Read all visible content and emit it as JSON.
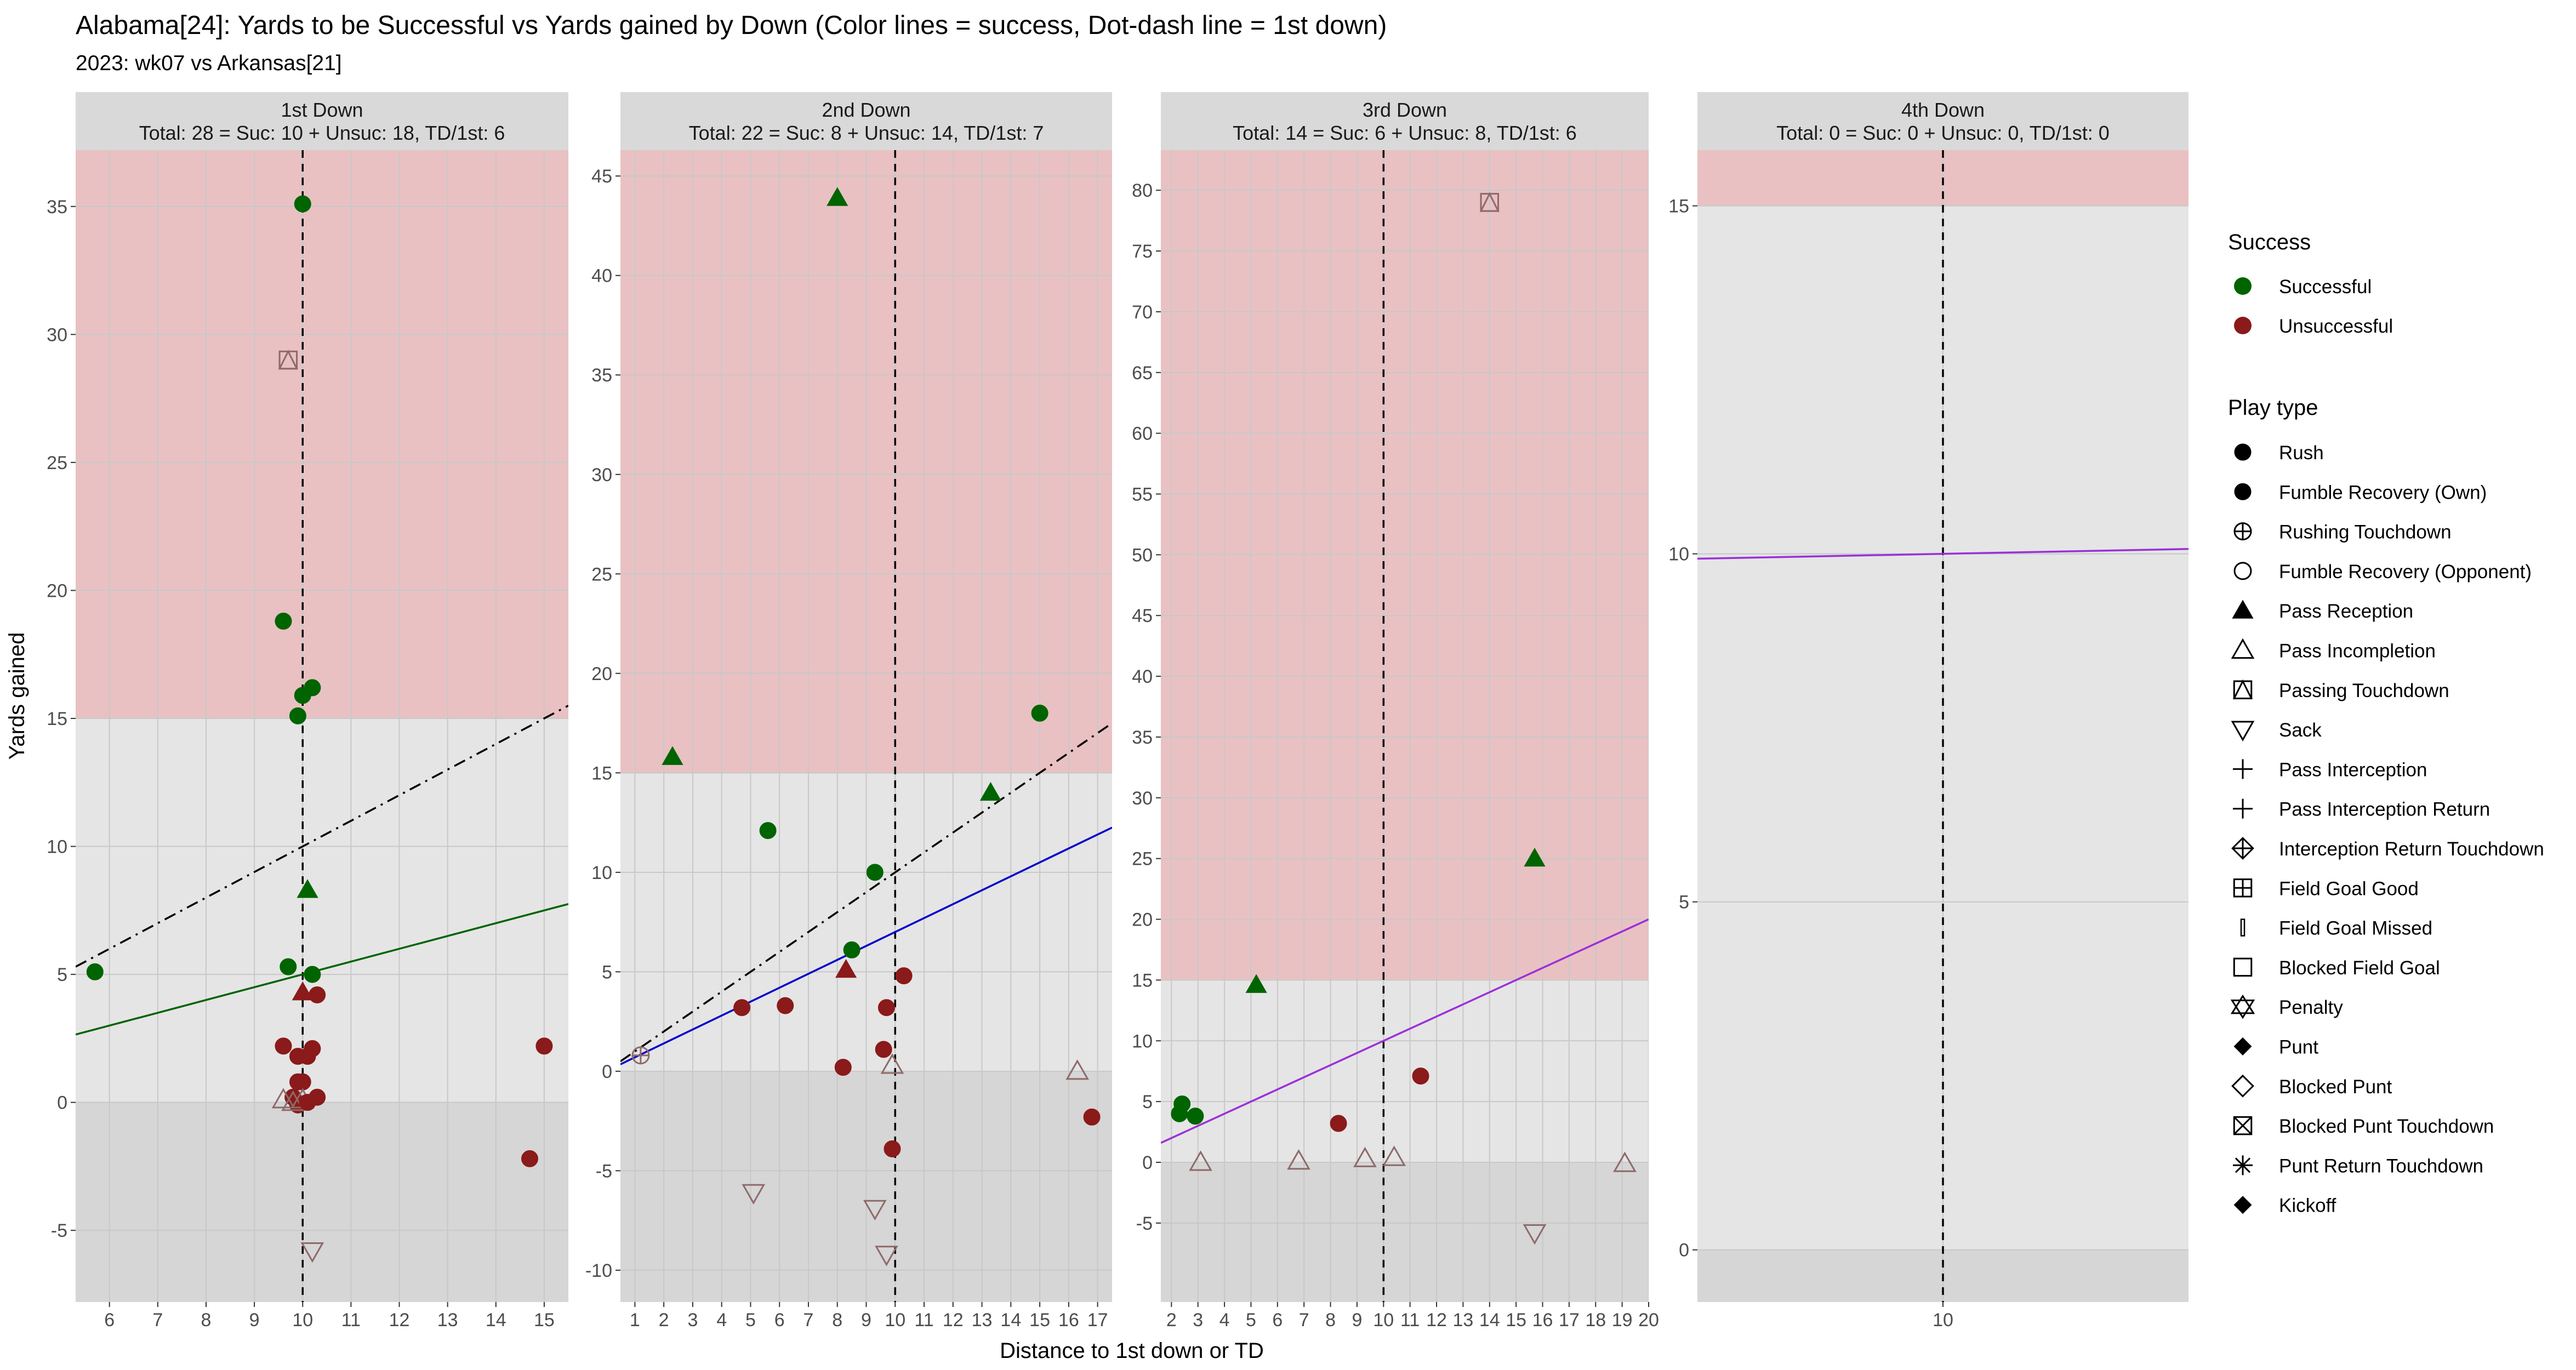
{
  "figure": {
    "title": "Alabama[24]: Yards to be Successful vs Yards gained by Down  (Color lines = success, Dot-dash line = 1st down)",
    "subtitle": "2023: wk07 vs Arkansas[21]",
    "xlabel": "Distance to 1st down or TD",
    "ylabel": "Yards gained"
  },
  "colors": {
    "successful": "#006400",
    "unsuccessful": "#8B1A1A",
    "outline": "#8E6A6A",
    "red_band": "#E9C1C3",
    "plain_band": "#E5E5E5",
    "negative_band": "#D6D6D6",
    "strip": "#D9D9D9",
    "grid": "#C8C8C8"
  },
  "legend": {
    "success_title": "Success",
    "success_items": [
      {
        "label": "Successful",
        "color": "#006400"
      },
      {
        "label": "Unsuccessful",
        "color": "#8B1A1A"
      }
    ],
    "playtype_title": "Play type",
    "playtype_items": [
      {
        "label": "Rush",
        "shape": "circle"
      },
      {
        "label": "Fumble Recovery (Own)",
        "shape": "circle"
      },
      {
        "label": "Rushing Touchdown",
        "shape": "circle-plus"
      },
      {
        "label": "Fumble Recovery (Opponent)",
        "shape": "circle-open"
      },
      {
        "label": "Pass Reception",
        "shape": "triangle"
      },
      {
        "label": "Pass Incompletion",
        "shape": "triangle-open"
      },
      {
        "label": "Passing Touchdown",
        "shape": "square-triangle"
      },
      {
        "label": "Sack",
        "shape": "triangle-down-open"
      },
      {
        "label": "Pass Interception",
        "shape": "plus"
      },
      {
        "label": "Pass Interception Return",
        "shape": "plus"
      },
      {
        "label": "Interception Return Touchdown",
        "shape": "diamond-plus"
      },
      {
        "label": "Field Goal Good",
        "shape": "square-plus"
      },
      {
        "label": "Field Goal Missed",
        "shape": "thin-rect"
      },
      {
        "label": "Blocked Field Goal",
        "shape": "square-open"
      },
      {
        "label": "Penalty",
        "shape": "star-david"
      },
      {
        "label": "Punt",
        "shape": "diamond"
      },
      {
        "label": "Blocked Punt",
        "shape": "diamond-open"
      },
      {
        "label": "Blocked Punt Touchdown",
        "shape": "square-x"
      },
      {
        "label": "Punt Return Touchdown",
        "shape": "asterisk"
      },
      {
        "label": "Kickoff",
        "shape": "diamond"
      }
    ]
  },
  "chart_data": [
    {
      "type": "scatter",
      "panel": "1st Down",
      "strip_line1": "1st Down",
      "strip_line2": "Total: 28 = Suc: 10 + Unsuc: 18, TD/1st: 6",
      "xlim": [
        5.3,
        15.5
      ],
      "ylim": [
        -7.8,
        37.2
      ],
      "xticks": [
        6,
        7,
        8,
        9,
        10,
        11,
        12,
        13,
        14,
        15
      ],
      "yticks": [
        -5,
        0,
        5,
        10,
        15,
        20,
        25,
        30,
        35
      ],
      "red_threshold": 15,
      "vline": 10,
      "success_line": {
        "x": [
          5.3,
          15.5
        ],
        "y": [
          2.65,
          7.75
        ],
        "color": "#006400"
      },
      "first_down_line": {
        "x": [
          5.3,
          15.5
        ],
        "y": [
          5.3,
          15.5
        ]
      },
      "points": [
        {
          "x": 5.7,
          "y": 5.1,
          "shape": "circle",
          "success": true
        },
        {
          "x": 10.0,
          "y": 35.1,
          "shape": "circle",
          "success": true
        },
        {
          "x": 9.6,
          "y": 18.8,
          "shape": "circle",
          "success": true
        },
        {
          "x": 10.2,
          "y": 16.2,
          "shape": "circle",
          "success": true
        },
        {
          "x": 10.0,
          "y": 15.9,
          "shape": "circle",
          "success": true
        },
        {
          "x": 9.9,
          "y": 15.1,
          "shape": "circle",
          "success": true
        },
        {
          "x": 9.7,
          "y": 29.0,
          "shape": "square-triangle",
          "success": true
        },
        {
          "x": 10.1,
          "y": 8.3,
          "shape": "triangle",
          "success": true
        },
        {
          "x": 9.7,
          "y": 5.3,
          "shape": "circle",
          "success": true
        },
        {
          "x": 10.2,
          "y": 5.0,
          "shape": "circle",
          "success": true
        },
        {
          "x": 10.0,
          "y": 4.3,
          "shape": "triangle",
          "success": false
        },
        {
          "x": 10.3,
          "y": 4.2,
          "shape": "circle",
          "success": false
        },
        {
          "x": 9.6,
          "y": 2.2,
          "shape": "circle",
          "success": false
        },
        {
          "x": 10.2,
          "y": 2.1,
          "shape": "circle",
          "success": false
        },
        {
          "x": 9.9,
          "y": 1.8,
          "shape": "circle",
          "success": false
        },
        {
          "x": 10.1,
          "y": 1.8,
          "shape": "circle",
          "success": false
        },
        {
          "x": 9.9,
          "y": 0.8,
          "shape": "circle",
          "success": false
        },
        {
          "x": 10.0,
          "y": 0.8,
          "shape": "circle",
          "success": false
        },
        {
          "x": 10.3,
          "y": 0.2,
          "shape": "circle",
          "success": false
        },
        {
          "x": 9.8,
          "y": 0.2,
          "shape": "circle",
          "success": false
        },
        {
          "x": 9.9,
          "y": -0.1,
          "shape": "circle",
          "success": false
        },
        {
          "x": 9.6,
          "y": 0.1,
          "shape": "triangle-open",
          "success": false
        },
        {
          "x": 9.8,
          "y": 0.0,
          "shape": "triangle-open",
          "success": false
        },
        {
          "x": 10.0,
          "y": 0.1,
          "shape": "triangle-open",
          "success": false
        },
        {
          "x": 10.2,
          "y": -5.8,
          "shape": "triangle-down-open",
          "success": false
        },
        {
          "x": 15.0,
          "y": 2.2,
          "shape": "circle",
          "success": false
        },
        {
          "x": 14.7,
          "y": -2.2,
          "shape": "circle",
          "success": false
        },
        {
          "x": 10.1,
          "y": 0.0,
          "shape": "circle",
          "success": false
        }
      ]
    },
    {
      "type": "scatter",
      "panel": "2nd Down",
      "strip_line1": "2nd Down",
      "strip_line2": "Total: 22 = Suc: 8 + Unsuc: 14, TD/1st: 7",
      "xlim": [
        0.5,
        17.5
      ],
      "ylim": [
        -11.6,
        46.3
      ],
      "xticks": [
        1,
        2,
        3,
        4,
        5,
        6,
        7,
        8,
        9,
        10,
        11,
        12,
        13,
        14,
        15,
        16,
        17
      ],
      "yticks": [
        -10,
        -5,
        0,
        5,
        10,
        15,
        20,
        25,
        30,
        35,
        40,
        45
      ],
      "red_threshold": 15,
      "vline": 10,
      "success_line": {
        "x": [
          0.5,
          17.5
        ],
        "y": [
          0.35,
          12.25
        ],
        "color": "#0000CD"
      },
      "first_down_line": {
        "x": [
          0.5,
          17.5
        ],
        "y": [
          0.5,
          17.5
        ]
      },
      "points": [
        {
          "x": 1.2,
          "y": 0.8,
          "shape": "circle-plus",
          "success": true
        },
        {
          "x": 2.3,
          "y": 15.8,
          "shape": "triangle",
          "success": true
        },
        {
          "x": 8.0,
          "y": 43.9,
          "shape": "triangle",
          "success": true
        },
        {
          "x": 5.6,
          "y": 12.1,
          "shape": "circle",
          "success": true
        },
        {
          "x": 9.3,
          "y": 10.0,
          "shape": "circle",
          "success": true
        },
        {
          "x": 8.5,
          "y": 6.1,
          "shape": "circle",
          "success": true
        },
        {
          "x": 13.3,
          "y": 14.0,
          "shape": "triangle",
          "success": true
        },
        {
          "x": 15.0,
          "y": 18.0,
          "shape": "circle",
          "success": true
        },
        {
          "x": 8.3,
          "y": 5.1,
          "shape": "triangle",
          "success": false
        },
        {
          "x": 10.3,
          "y": 4.8,
          "shape": "circle",
          "success": false
        },
        {
          "x": 4.7,
          "y": 3.2,
          "shape": "circle",
          "success": false
        },
        {
          "x": 6.2,
          "y": 3.3,
          "shape": "circle",
          "success": false
        },
        {
          "x": 9.7,
          "y": 3.2,
          "shape": "circle",
          "success": false
        },
        {
          "x": 9.6,
          "y": 1.1,
          "shape": "circle",
          "success": false
        },
        {
          "x": 8.2,
          "y": 0.2,
          "shape": "circle",
          "success": false
        },
        {
          "x": 9.9,
          "y": 0.3,
          "shape": "triangle-open",
          "success": false
        },
        {
          "x": 16.3,
          "y": 0.0,
          "shape": "triangle-open",
          "success": false
        },
        {
          "x": 16.8,
          "y": -2.3,
          "shape": "circle",
          "success": false
        },
        {
          "x": 9.9,
          "y": -3.9,
          "shape": "circle",
          "success": false
        },
        {
          "x": 5.1,
          "y": -6.1,
          "shape": "triangle-down-open",
          "success": false
        },
        {
          "x": 9.3,
          "y": -6.9,
          "shape": "triangle-down-open",
          "success": false
        },
        {
          "x": 9.7,
          "y": -9.2,
          "shape": "triangle-down-open",
          "success": false
        }
      ]
    },
    {
      "type": "scatter",
      "panel": "3rd Down",
      "strip_line1": "3rd Down",
      "strip_line2": "Total: 14 = Suc: 6 + Unsuc: 8, TD/1st: 6",
      "xlim": [
        1.6,
        20.0
      ],
      "ylim": [
        -11.5,
        83.3
      ],
      "xticks": [
        2,
        3,
        4,
        5,
        6,
        7,
        8,
        9,
        10,
        11,
        12,
        13,
        14,
        15,
        16,
        17,
        18,
        19,
        20
      ],
      "yticks": [
        -5,
        0,
        5,
        10,
        15,
        20,
        25,
        30,
        35,
        40,
        45,
        50,
        55,
        60,
        65,
        70,
        75,
        80
      ],
      "red_threshold": 15,
      "vline": 10,
      "success_line": {
        "x": [
          1.6,
          20.0
        ],
        "y": [
          1.6,
          20.0
        ],
        "color": "#9B30D9"
      },
      "first_down_line": null,
      "points": [
        {
          "x": 14.0,
          "y": 79.0,
          "shape": "square-triangle",
          "success": true
        },
        {
          "x": 15.7,
          "y": 25.0,
          "shape": "triangle",
          "success": true
        },
        {
          "x": 5.2,
          "y": 14.6,
          "shape": "triangle",
          "success": true
        },
        {
          "x": 2.4,
          "y": 4.8,
          "shape": "circle",
          "success": true
        },
        {
          "x": 2.3,
          "y": 4.0,
          "shape": "circle",
          "success": true
        },
        {
          "x": 2.9,
          "y": 3.8,
          "shape": "circle",
          "success": true
        },
        {
          "x": 11.4,
          "y": 7.1,
          "shape": "circle",
          "success": false
        },
        {
          "x": 8.3,
          "y": 3.2,
          "shape": "circle",
          "success": false
        },
        {
          "x": 3.1,
          "y": 0.0,
          "shape": "triangle-open",
          "success": false
        },
        {
          "x": 6.8,
          "y": 0.1,
          "shape": "triangle-open",
          "success": false
        },
        {
          "x": 9.3,
          "y": 0.3,
          "shape": "triangle-open",
          "success": false
        },
        {
          "x": 10.4,
          "y": 0.4,
          "shape": "triangle-open",
          "success": false
        },
        {
          "x": 19.1,
          "y": -0.1,
          "shape": "triangle-open",
          "success": false
        },
        {
          "x": 15.7,
          "y": -5.8,
          "shape": "triangle-down-open",
          "success": false
        }
      ]
    },
    {
      "type": "scatter",
      "panel": "4th Down",
      "strip_line1": "4th Down",
      "strip_line2": "Total: 0 = Suc: 0 + Unsuc: 0, TD/1st: 0",
      "xlim": [
        7.5,
        12.5
      ],
      "ylim": [
        -0.75,
        15.8
      ],
      "xticks": [
        10
      ],
      "yticks": [
        0,
        5,
        10,
        15
      ],
      "red_threshold": 15,
      "vline": 10,
      "success_line": {
        "x": [
          7.5,
          12.5
        ],
        "y": [
          9.93,
          10.07
        ],
        "color": "#9B30D9"
      },
      "first_down_line": null,
      "points": []
    }
  ]
}
